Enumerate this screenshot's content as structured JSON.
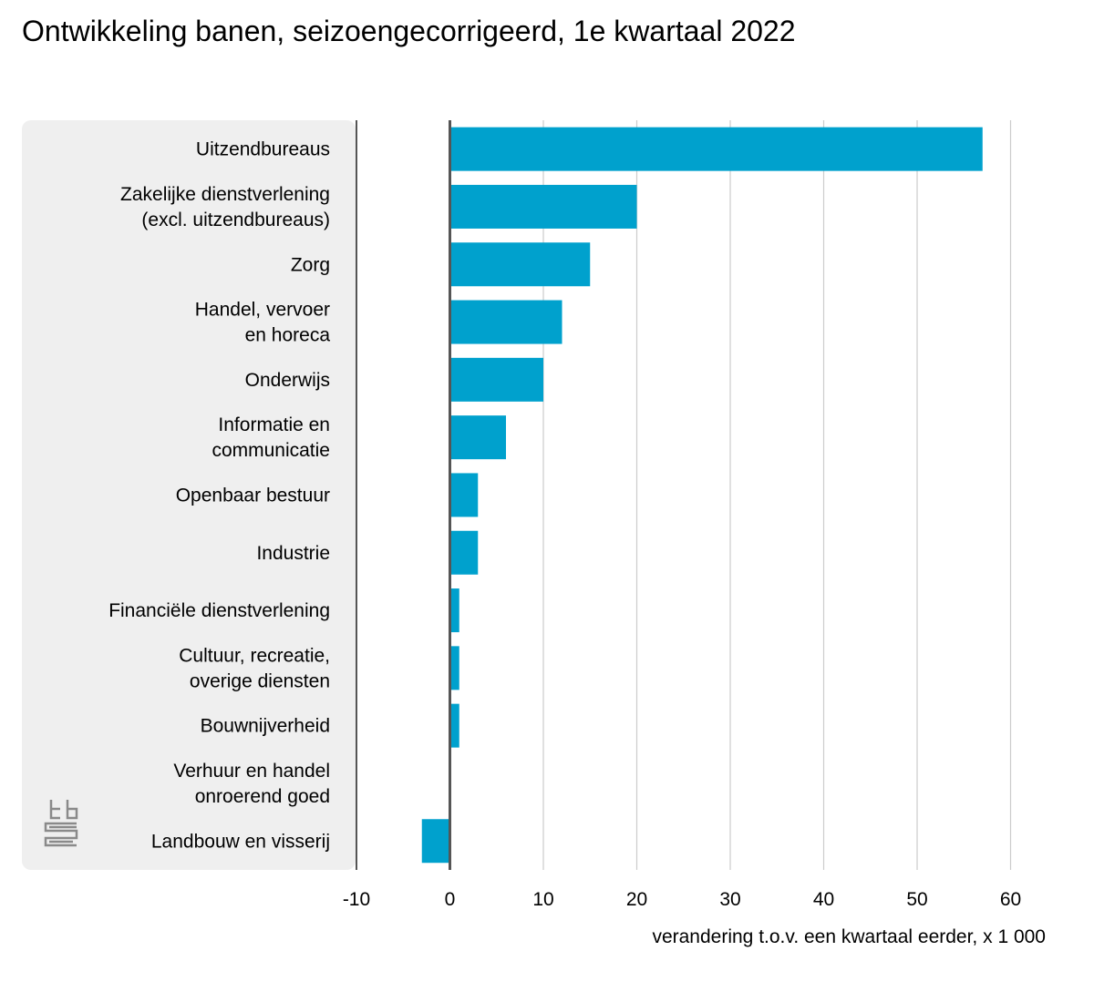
{
  "title": "Ontwikkeling banen, seizoengecorrigeerd, 1e kwartaal 2022",
  "colors": {
    "bar": "#00a1cd",
    "panel": "#efefef",
    "grid": "#cccccc",
    "axis": "#555555"
  },
  "chart_data": {
    "type": "bar",
    "orientation": "horizontal",
    "categories": [
      [
        "Uitzendbureaus"
      ],
      [
        "Zakelijke dienstverlening",
        "(excl. uitzendbureaus)"
      ],
      [
        "Zorg"
      ],
      [
        "Handel, vervoer",
        "en horeca"
      ],
      [
        "Onderwijs"
      ],
      [
        "Informatie en",
        "communicatie"
      ],
      [
        "Openbaar bestuur"
      ],
      [
        "Industrie"
      ],
      [
        "Financiële dienstverlening"
      ],
      [
        "Cultuur, recreatie,",
        "overige diensten"
      ],
      [
        "Bouwnijverheid"
      ],
      [
        "Verhuur en handel",
        "onroerend goed"
      ],
      [
        "Landbouw en visserij"
      ]
    ],
    "values": [
      57,
      20,
      15,
      12,
      10,
      6,
      3,
      3,
      1,
      1,
      1,
      0,
      -3
    ],
    "xlabel": "verandering t.o.v. een kwartaal eerder, x 1 000",
    "xlim": [
      -10,
      60
    ],
    "xticks": [
      "-10",
      "0",
      "10",
      "20",
      "30",
      "40",
      "50",
      "60"
    ],
    "grid": true
  }
}
